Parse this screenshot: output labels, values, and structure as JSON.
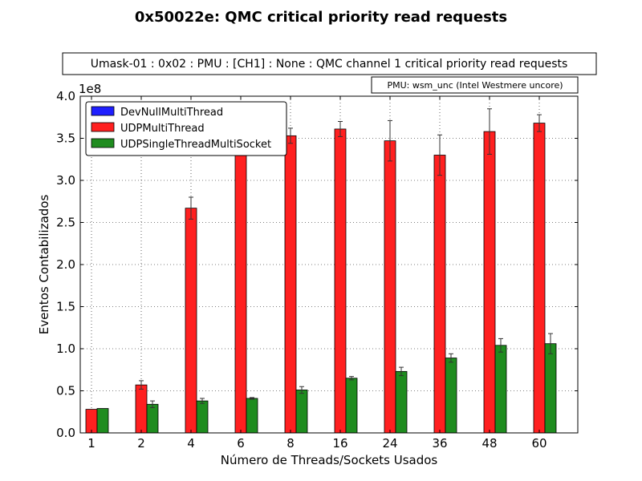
{
  "chart_data": {
    "type": "bar",
    "title": "0x50022e: QMC critical priority read requests",
    "subtitle": "Umask-01 : 0x02 : PMU : [CH1] : None : QMC channel 1 critical priority read requests",
    "pmu_note": "PMU: wsm_unc (Intel Westmere uncore)",
    "xlabel": "Número de Threads/Sockets Usados",
    "ylabel": "Eventos Contabilizados",
    "y_multiplier": "1e8",
    "ylim": [
      0,
      4.0
    ],
    "yticks": [
      "0.0",
      "0.5",
      "1.0",
      "1.5",
      "2.0",
      "2.5",
      "3.0",
      "3.5",
      "4.0"
    ],
    "grid": true,
    "legend_position": "top-left",
    "categories": [
      "1",
      "2",
      "4",
      "6",
      "8",
      "16",
      "24",
      "36",
      "48",
      "60"
    ],
    "series": [
      {
        "name": "DevNullMultiThread",
        "color": "#1f1fff",
        "values": [
          0,
          0,
          0,
          0,
          0,
          0,
          0,
          0,
          0,
          0
        ],
        "errors": [
          0,
          0,
          0,
          0,
          0,
          0,
          0,
          0,
          0,
          0
        ]
      },
      {
        "name": "UDPMultiThread",
        "color": "#ff2020",
        "values": [
          0.28,
          0.57,
          2.67,
          3.44,
          3.53,
          3.61,
          3.47,
          3.3,
          3.58,
          3.68
        ],
        "errors": [
          0.0,
          0.05,
          0.13,
          0.1,
          0.09,
          0.09,
          0.24,
          0.24,
          0.27,
          0.1
        ]
      },
      {
        "name": "UDPSingleThreadMultiSocket",
        "color": "#1f8c1f",
        "values": [
          0.29,
          0.34,
          0.38,
          0.41,
          0.51,
          0.65,
          0.73,
          0.89,
          1.04,
          1.06
        ],
        "errors": [
          0.0,
          0.04,
          0.03,
          0.01,
          0.04,
          0.02,
          0.05,
          0.05,
          0.08,
          0.12
        ]
      }
    ]
  }
}
